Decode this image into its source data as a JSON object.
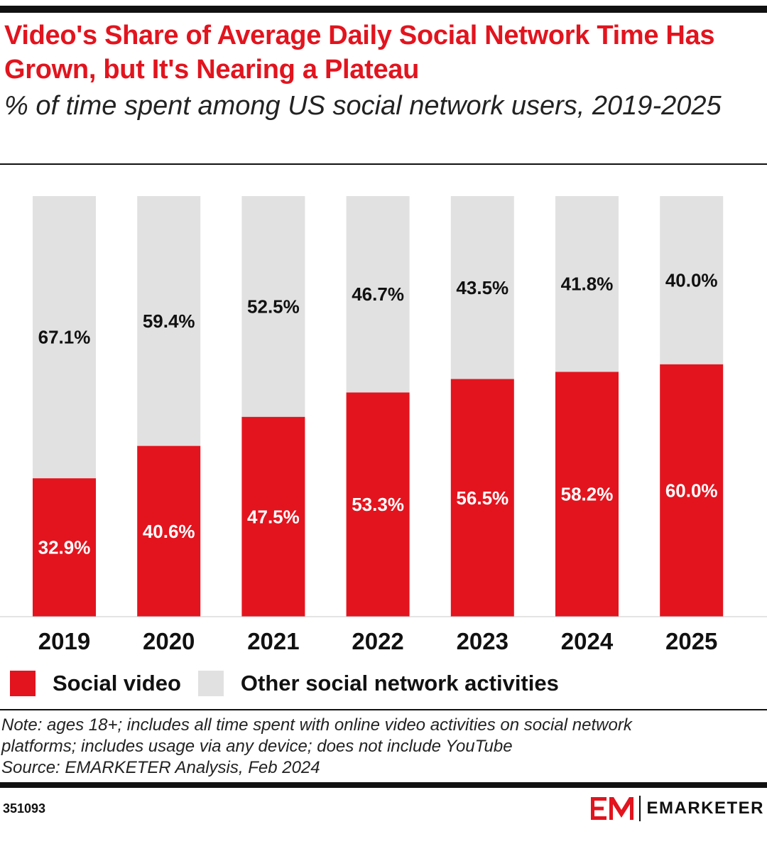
{
  "header": {
    "title": "Video's Share of Average Daily Social Network Time Has Grown, but It's Nearing a Plateau",
    "subtitle": "% of time spent among US social network users, 2019-2025"
  },
  "colors": {
    "social_video": "#e3141e",
    "other": "#e1e1e1",
    "title_red": "#e2141e"
  },
  "chart_data": {
    "type": "bar",
    "stacked": true,
    "categories": [
      "2019",
      "2020",
      "2021",
      "2022",
      "2023",
      "2024",
      "2025"
    ],
    "series": [
      {
        "name": "Social video",
        "values": [
          32.9,
          40.6,
          47.5,
          53.3,
          56.5,
          58.2,
          60.0
        ],
        "labels": [
          "32.9%",
          "40.6%",
          "47.5%",
          "53.3%",
          "56.5%",
          "58.2%",
          "60.0%"
        ]
      },
      {
        "name": "Other social network activities",
        "values": [
          67.1,
          59.4,
          52.5,
          46.7,
          43.5,
          41.8,
          40.0
        ],
        "labels": [
          "67.1%",
          "59.4%",
          "52.5%",
          "46.7%",
          "43.5%",
          "41.8%",
          "40.0%"
        ]
      }
    ],
    "ylim": [
      0,
      100
    ],
    "grid": false,
    "legend_position": "bottom-left"
  },
  "legend": [
    {
      "label": "Social video",
      "color": "#e3141e"
    },
    {
      "label": "Other social network activities",
      "color": "#e1e1e1"
    }
  ],
  "footer": {
    "note_line1": "Note: ages 18+; includes all time spent with online video activities on social network",
    "note_line2": "platforms; includes usage via any device; does not include YouTube",
    "source": "Source: EMARKETER Analysis, Feb 2024",
    "chart_id": "351093",
    "brand": "EMARKETER",
    "brand_logo_icon": "em-logo-icon"
  }
}
